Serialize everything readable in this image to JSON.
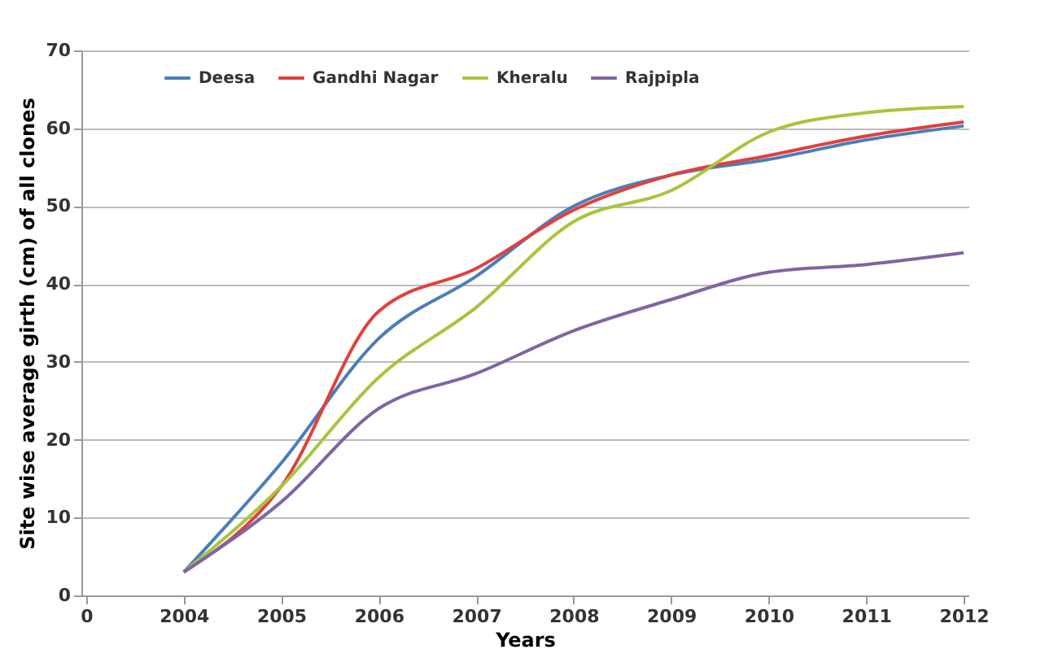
{
  "chart_data": {
    "type": "line",
    "xlabel": "Years",
    "ylabel": "Site wise average girth (cm) of all clones",
    "categories": [
      "0",
      "2004",
      "2005",
      "2006",
      "2007",
      "2008",
      "2009",
      "2010",
      "2011",
      "2012"
    ],
    "series": [
      {
        "name": "Deesa",
        "color": "#4a7ebb",
        "values": [
          null,
          3,
          17,
          33,
          41,
          50,
          54,
          56,
          58.5,
          60.3
        ]
      },
      {
        "name": "Gandhi Nagar",
        "color": "#e0403c",
        "values": [
          null,
          3,
          14,
          36.5,
          42,
          49.5,
          54,
          56.5,
          59,
          60.8
        ]
      },
      {
        "name": "Kheralu",
        "color": "#a9c43c",
        "values": [
          null,
          3,
          14,
          28,
          37,
          48,
          52,
          59.5,
          62,
          62.8
        ]
      },
      {
        "name": "Rajpipla",
        "color": "#8064a2",
        "values": [
          null,
          3,
          12,
          24,
          28.5,
          34,
          38,
          41.5,
          42.5,
          44
        ]
      }
    ],
    "ylim": [
      0,
      70
    ],
    "yticks": [
      0,
      10,
      20,
      30,
      40,
      50,
      60,
      70
    ],
    "grid": "y",
    "legend": "top",
    "marker": "none",
    "line_style": "solid"
  }
}
